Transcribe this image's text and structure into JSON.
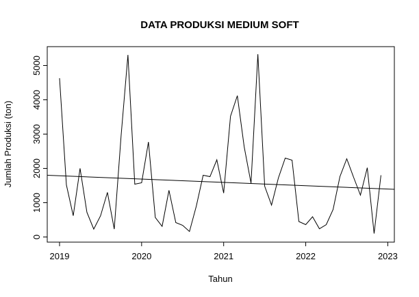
{
  "chart_data": {
    "type": "line",
    "title": "DATA PRODUKSI MEDIUM SOFT",
    "xlabel": "Tahun",
    "ylabel": "Jumlah Produksi (ton)",
    "xlim": [
      2018.85,
      2023.08
    ],
    "ylim": [
      -150,
      5550
    ],
    "xticks": [
      2019,
      2020,
      2021,
      2022,
      2023
    ],
    "xtick_labels": [
      "2019",
      "2020",
      "2021",
      "2022",
      "2023"
    ],
    "yticks": [
      0,
      1000,
      2000,
      3000,
      4000,
      5000
    ],
    "ytick_labels": [
      "0",
      "1000",
      "2000",
      "3000",
      "4000",
      "5000"
    ],
    "grid": false,
    "series": [
      {
        "values": [
          4630,
          1520,
          620,
          2000,
          720,
          230,
          620,
          1300,
          230,
          2950,
          5310,
          1540,
          1580,
          2770,
          570,
          310,
          1360,
          420,
          340,
          160,
          900,
          1800,
          1760,
          2250,
          1280,
          3520,
          4120,
          2630,
          1570,
          5330,
          1480,
          930,
          1720,
          2300,
          2240,
          450,
          360,
          590,
          240,
          360,
          800,
          1760,
          2280,
          1740,
          1220,
          2020,
          100,
          1800
        ],
        "start": 2019.0,
        "step": 0.0833333
      },
      {
        "type": "trend",
        "x": [
          2018.85,
          2023.08
        ],
        "y": [
          1800,
          1390
        ]
      }
    ]
  }
}
